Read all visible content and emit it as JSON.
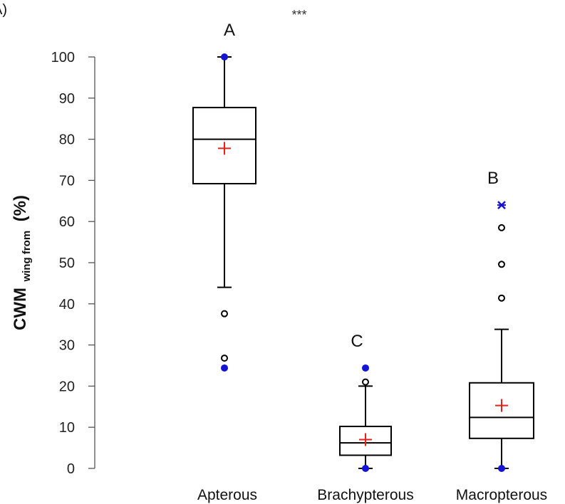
{
  "chart_data": {
    "type": "boxplot",
    "panel_label": "A)",
    "significance": "***",
    "ylabel": {
      "main": "CWM",
      "subscript": "wing from",
      "unit": "(%)"
    },
    "ylim": [
      0,
      100
    ],
    "yticks": [
      0,
      10,
      20,
      30,
      40,
      50,
      60,
      70,
      80,
      90,
      100
    ],
    "grid": false,
    "categories": [
      "Apterous",
      "Brachypterous",
      "Macropterous"
    ],
    "groups": [
      {
        "category": "Apterous",
        "letter": "A",
        "whisker_low": 44,
        "q1": 69.2,
        "median": 80,
        "q3": 87.7,
        "whisker_high": 100,
        "mean": 77.8,
        "outliers": [
          37.6,
          26.8
        ],
        "extremes": [
          24.4,
          100
        ],
        "extreme_markers": [
          "dot",
          "dot"
        ]
      },
      {
        "category": "Brachypterous",
        "letter": "C",
        "whisker_low": 0,
        "q1": 3.2,
        "median": 6.2,
        "q3": 10.2,
        "whisker_high": 20,
        "mean": 7,
        "outliers": [
          21
        ],
        "extremes": [
          24.4,
          0
        ],
        "extreme_markers": [
          "dot",
          "dot"
        ]
      },
      {
        "category": "Macropterous",
        "letter": "B",
        "whisker_low": 0,
        "q1": 7.3,
        "median": 12.4,
        "q3": 20.8,
        "whisker_high": 33.8,
        "mean": 15.3,
        "outliers": [
          41.4,
          49.6,
          58.5
        ],
        "extremes": [
          64,
          0
        ],
        "extreme_markers": [
          "star",
          "dot"
        ]
      }
    ],
    "colors": {
      "box": "#000000",
      "mean_marker": "#e8201c",
      "extreme_marker": "#1414d2",
      "outlier": "#000000"
    }
  }
}
